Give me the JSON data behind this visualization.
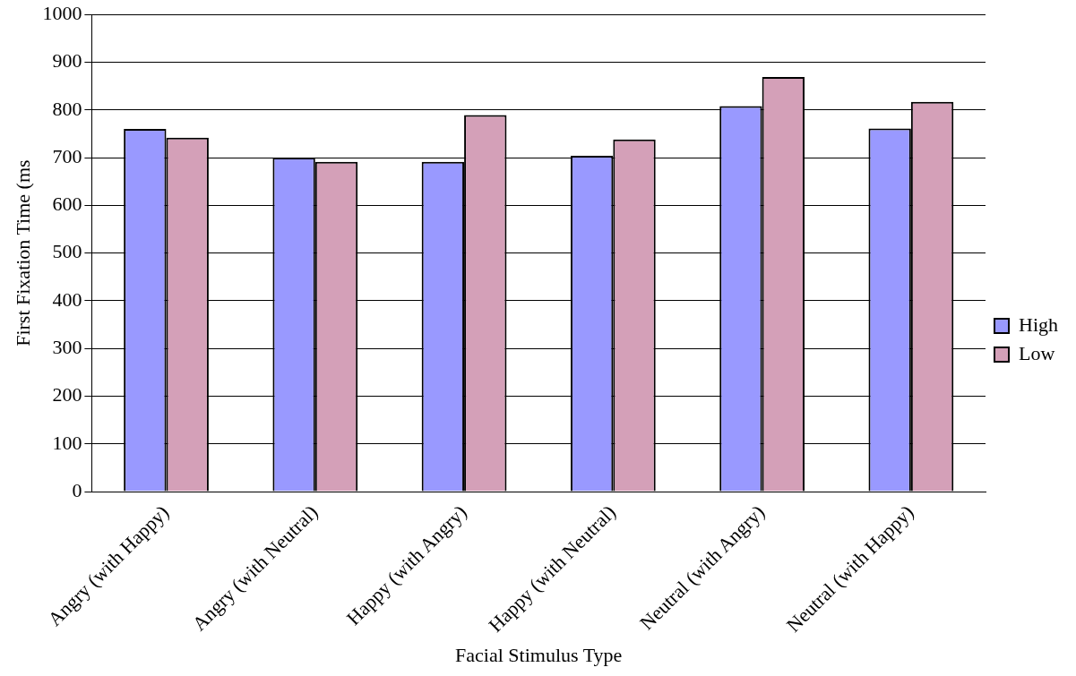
{
  "chart_data": {
    "type": "bar",
    "xlabel": "Facial Stimulus Type",
    "ylabel": "First Fixation Time (ms",
    "categories": [
      "Angry (with Happy)",
      "Angry (with Neutral)",
      "Happy (with Angry)",
      "Happy (with Neutral)",
      "Neutral (with Angry)",
      "Neutral (with Happy)"
    ],
    "series": [
      {
        "name": "High",
        "color": "#9999ff",
        "values": [
          760,
          700,
          691,
          704,
          808,
          761
        ]
      },
      {
        "name": "Low",
        "color": "#d4a0b8",
        "values": [
          742,
          691,
          789,
          738,
          869,
          817
        ]
      }
    ],
    "ylim": [
      0,
      1000
    ],
    "yticks": [
      0,
      100,
      200,
      300,
      400,
      500,
      600,
      700,
      800,
      900,
      1000
    ],
    "grid": "y",
    "legend": "right"
  }
}
